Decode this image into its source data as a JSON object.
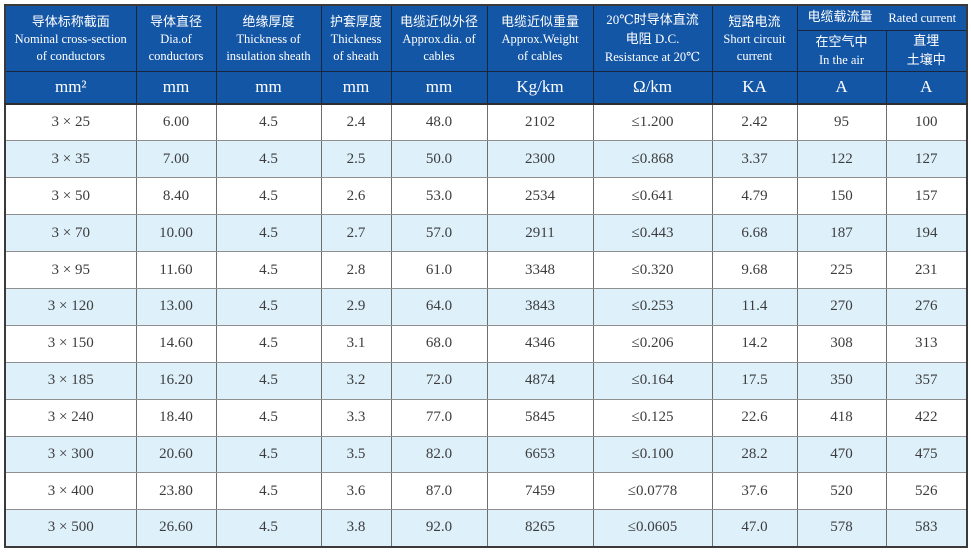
{
  "colors": {
    "header_bg": "#1456a6",
    "header_text": "#ffffff",
    "row_alt_bg": "#def0fa",
    "row_bg": "#ffffff",
    "grid_line": "#6e6e6e",
    "outer_border": "#3a3a3a",
    "data_text": "#3c3c3c"
  },
  "table": {
    "header": {
      "columns": [
        {
          "zh": "导体标称截面",
          "en1": "Nominal cross-section",
          "en2": "of conductors",
          "unit": "mm²"
        },
        {
          "zh": "导体直径",
          "en1": "Dia.of",
          "en2": "conductors",
          "unit": "mm"
        },
        {
          "zh": "绝缘厚度",
          "en1": "Thickness of",
          "en2": "insulation sheath",
          "unit": "mm"
        },
        {
          "zh": "护套厚度",
          "en1": "Thickness",
          "en2": "of sheath",
          "unit": "mm"
        },
        {
          "zh": "电缆近似外径",
          "en1": "Approx.dia. of",
          "en2": "cables",
          "unit": "mm"
        },
        {
          "zh": "电缆近似重量",
          "en1": "Approx.Weight",
          "en2": "of cables",
          "unit": "Kg/km"
        },
        {
          "zh": "20℃时导体直流",
          "en1": "电阻 D.C.",
          "en2": "Resistance at 20℃",
          "unit": "Ω/km"
        },
        {
          "zh": "短路电流",
          "en1": "Short circuit",
          "en2": "current",
          "unit": "KA"
        }
      ],
      "group": {
        "zh": "电缆载流量",
        "en": "Rated current"
      },
      "sub_columns": [
        {
          "line1": "在空气中",
          "line2": "In the air",
          "unit": "A"
        },
        {
          "line1": "直埋",
          "line2": "土壤中",
          "unit": "A"
        }
      ]
    },
    "rows": [
      [
        "3 × 25",
        "6.00",
        "4.5",
        "2.4",
        "48.0",
        "2102",
        "≤1.200",
        "2.42",
        "95",
        "100"
      ],
      [
        "3 × 35",
        "7.00",
        "4.5",
        "2.5",
        "50.0",
        "2300",
        "≤0.868",
        "3.37",
        "122",
        "127"
      ],
      [
        "3 × 50",
        "8.40",
        "4.5",
        "2.6",
        "53.0",
        "2534",
        "≤0.641",
        "4.79",
        "150",
        "157"
      ],
      [
        "3 × 70",
        "10.00",
        "4.5",
        "2.7",
        "57.0",
        "2911",
        "≤0.443",
        "6.68",
        "187",
        "194"
      ],
      [
        "3 × 95",
        "11.60",
        "4.5",
        "2.8",
        "61.0",
        "3348",
        "≤0.320",
        "9.68",
        "225",
        "231"
      ],
      [
        "3 × 120",
        "13.00",
        "4.5",
        "2.9",
        "64.0",
        "3843",
        "≤0.253",
        "11.4",
        "270",
        "276"
      ],
      [
        "3 × 150",
        "14.60",
        "4.5",
        "3.1",
        "68.0",
        "4346",
        "≤0.206",
        "14.2",
        "308",
        "313"
      ],
      [
        "3 × 185",
        "16.20",
        "4.5",
        "3.2",
        "72.0",
        "4874",
        "≤0.164",
        "17.5",
        "350",
        "357"
      ],
      [
        "3 × 240",
        "18.40",
        "4.5",
        "3.3",
        "77.0",
        "5845",
        "≤0.125",
        "22.6",
        "418",
        "422"
      ],
      [
        "3 × 300",
        "20.60",
        "4.5",
        "3.5",
        "82.0",
        "6653",
        "≤0.100",
        "28.2",
        "470",
        "475"
      ],
      [
        "3 × 400",
        "23.80",
        "4.5",
        "3.6",
        "87.0",
        "7459",
        "≤0.0778",
        "37.6",
        "520",
        "526"
      ],
      [
        "3 × 500",
        "26.60",
        "4.5",
        "3.8",
        "92.0",
        "8265",
        "≤0.0605",
        "47.0",
        "578",
        "583"
      ]
    ]
  }
}
